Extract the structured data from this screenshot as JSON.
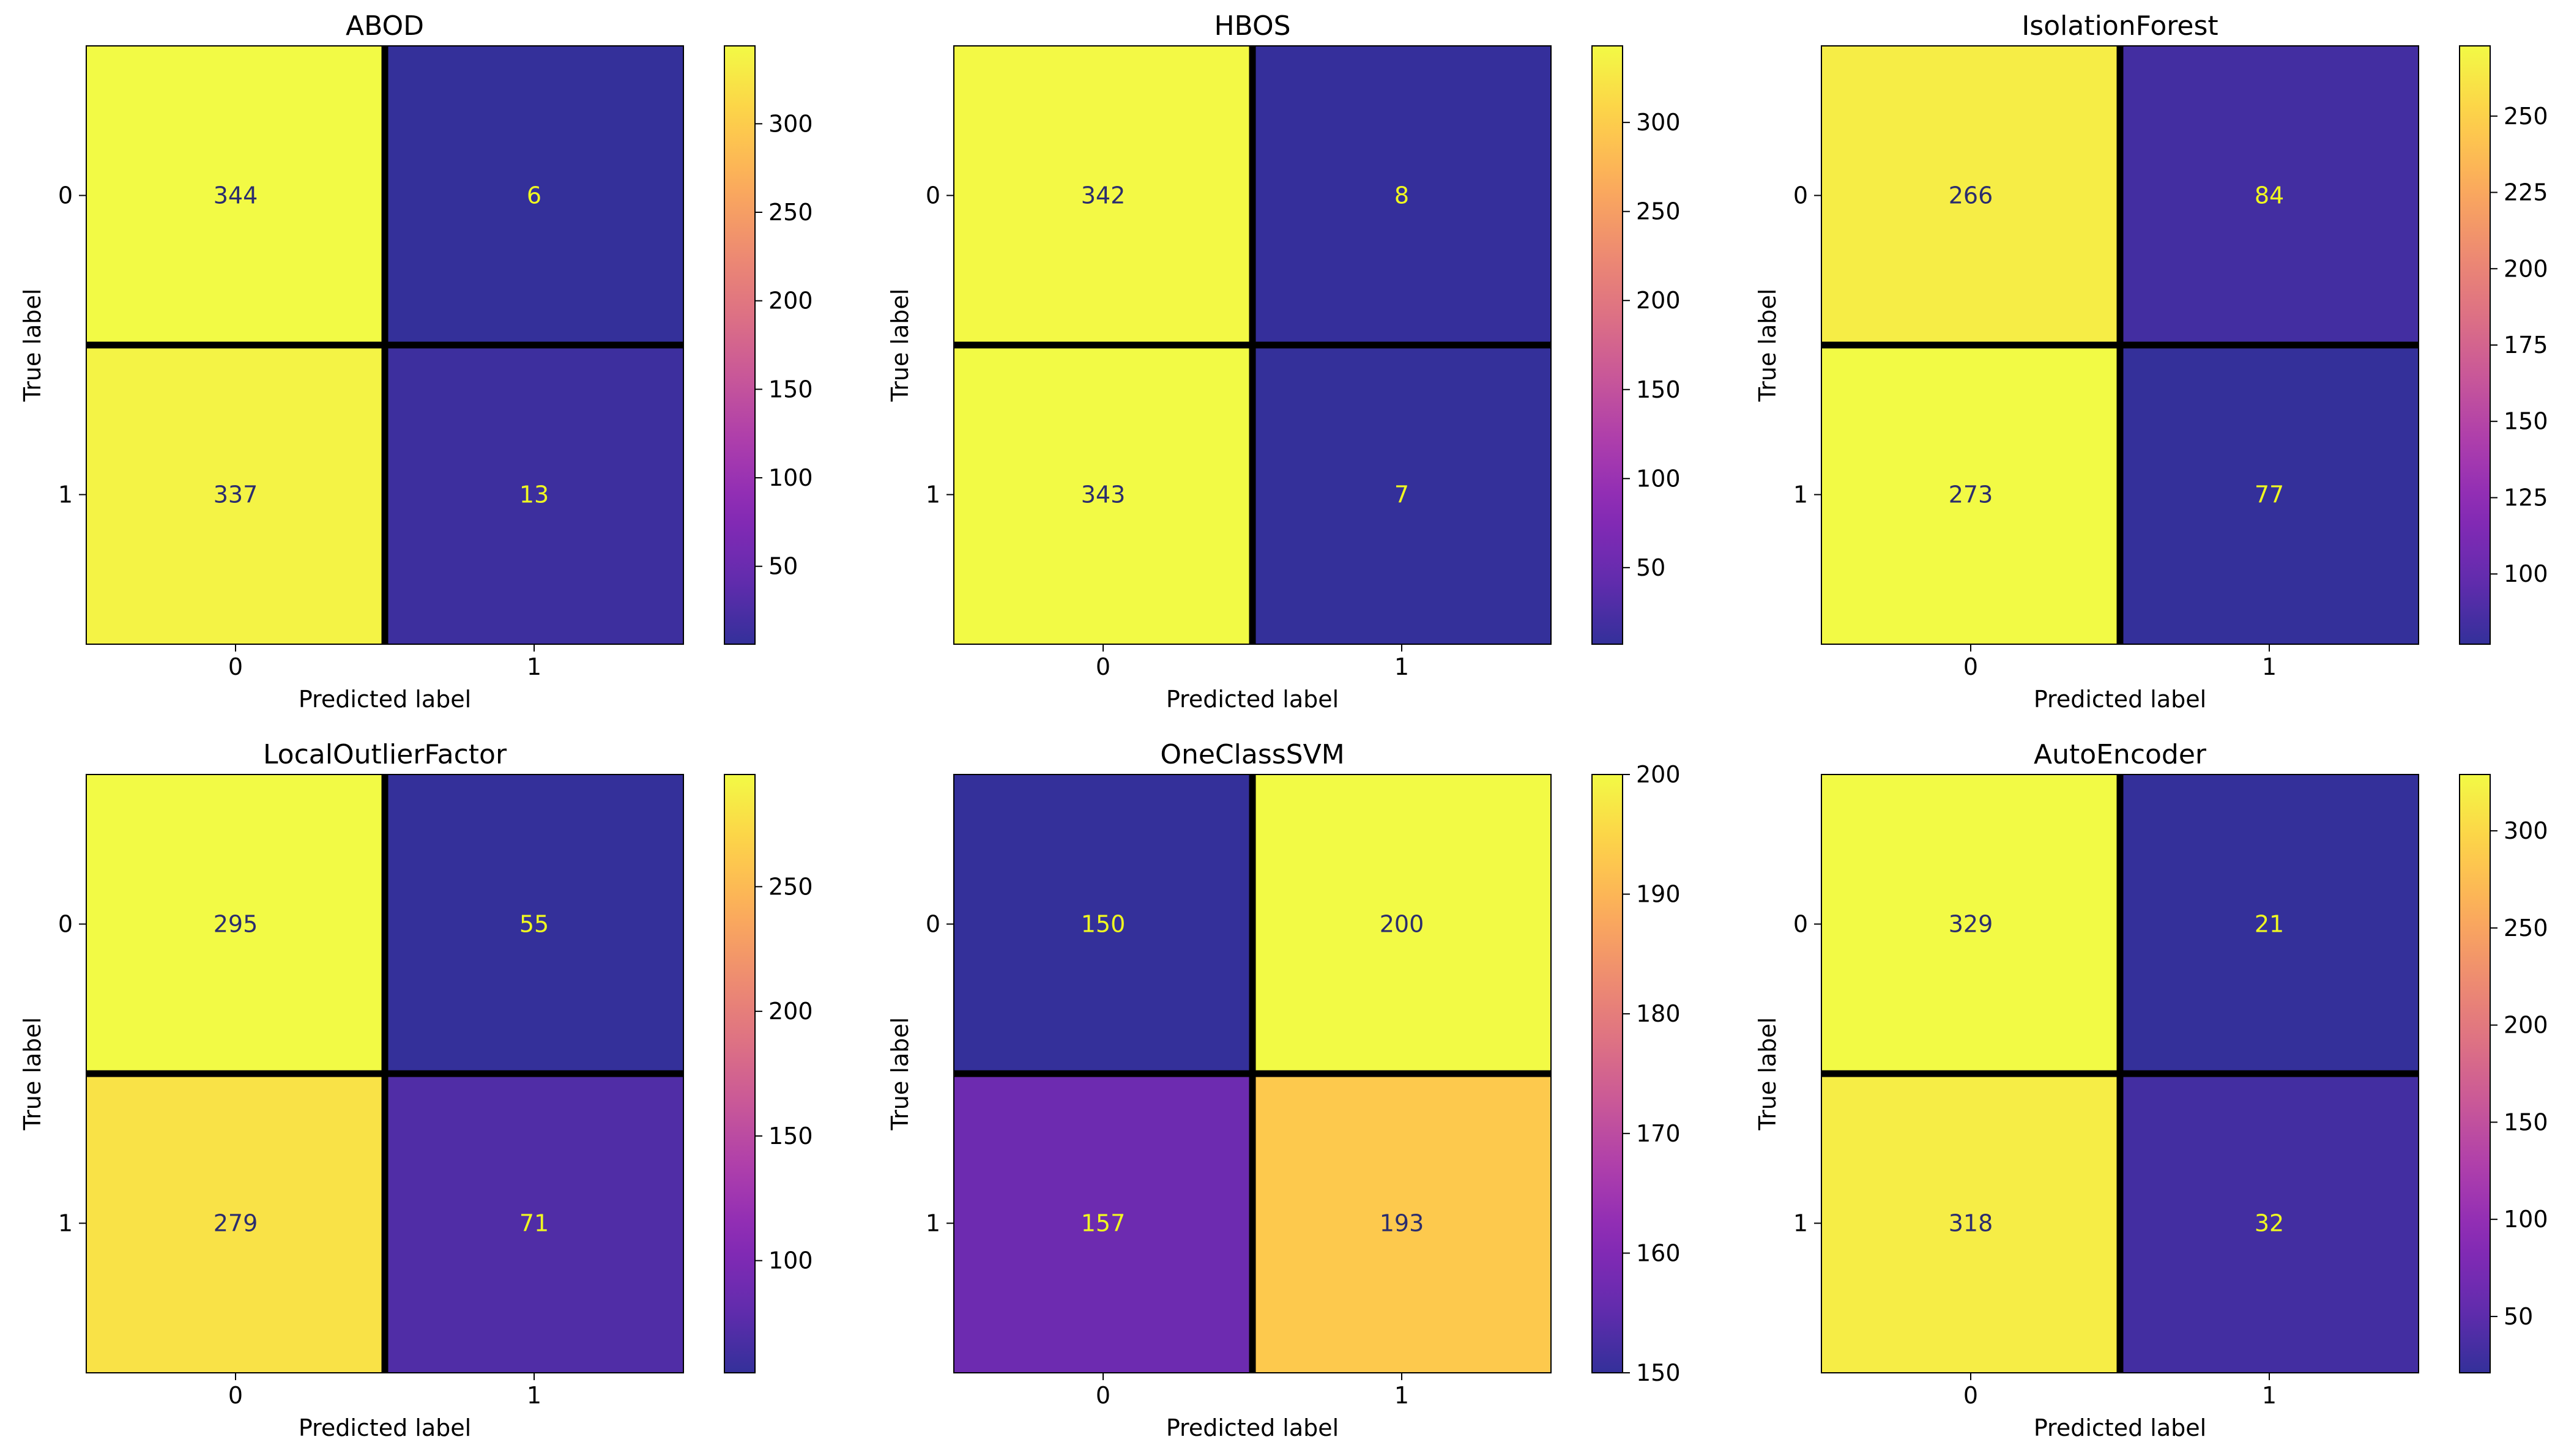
{
  "chart_data": [
    {
      "type": "heatmap",
      "title": "ABOD",
      "xlabel": "Predicted label",
      "ylabel": "True label",
      "x_categories": [
        "0",
        "1"
      ],
      "y_categories": [
        "0",
        "1"
      ],
      "matrix": [
        [
          344,
          6
        ],
        [
          337,
          13
        ]
      ],
      "colorbar": {
        "range": [
          6,
          344
        ],
        "ticks": [
          50,
          100,
          150,
          200,
          250,
          300
        ]
      }
    },
    {
      "type": "heatmap",
      "title": "HBOS",
      "xlabel": "Predicted label",
      "ylabel": "True label",
      "x_categories": [
        "0",
        "1"
      ],
      "y_categories": [
        "0",
        "1"
      ],
      "matrix": [
        [
          342,
          8
        ],
        [
          343,
          7
        ]
      ],
      "colorbar": {
        "range": [
          7,
          343
        ],
        "ticks": [
          50,
          100,
          150,
          200,
          250,
          300
        ]
      }
    },
    {
      "type": "heatmap",
      "title": "IsolationForest",
      "xlabel": "Predicted label",
      "ylabel": "True label",
      "x_categories": [
        "0",
        "1"
      ],
      "y_categories": [
        "0",
        "1"
      ],
      "matrix": [
        [
          266,
          84
        ],
        [
          273,
          77
        ]
      ],
      "colorbar": {
        "range": [
          77,
          273
        ],
        "ticks": [
          100,
          125,
          150,
          175,
          200,
          225,
          250
        ]
      }
    },
    {
      "type": "heatmap",
      "title": "LocalOutlierFactor",
      "xlabel": "Predicted label",
      "ylabel": "True label",
      "x_categories": [
        "0",
        "1"
      ],
      "y_categories": [
        "0",
        "1"
      ],
      "matrix": [
        [
          295,
          55
        ],
        [
          279,
          71
        ]
      ],
      "colorbar": {
        "range": [
          55,
          295
        ],
        "ticks": [
          100,
          150,
          200,
          250
        ]
      }
    },
    {
      "type": "heatmap",
      "title": "OneClassSVM",
      "xlabel": "Predicted label",
      "ylabel": "True label",
      "x_categories": [
        "0",
        "1"
      ],
      "y_categories": [
        "0",
        "1"
      ],
      "matrix": [
        [
          150,
          200
        ],
        [
          157,
          193
        ]
      ],
      "colorbar": {
        "range": [
          150,
          200
        ],
        "ticks": [
          150,
          160,
          170,
          180,
          190,
          200
        ]
      }
    },
    {
      "type": "heatmap",
      "title": "AutoEncoder",
      "xlabel": "Predicted label",
      "ylabel": "True label",
      "x_categories": [
        "0",
        "1"
      ],
      "y_categories": [
        "0",
        "1"
      ],
      "matrix": [
        [
          329,
          21
        ],
        [
          318,
          32
        ]
      ],
      "colorbar": {
        "range": [
          21,
          329
        ],
        "ticks": [
          50,
          100,
          150,
          200,
          250,
          300
        ]
      }
    }
  ],
  "colormap": [
    "#0d0887",
    "#46039f",
    "#7201a8",
    "#9c179e",
    "#bd3786",
    "#d8576b",
    "#ed7953",
    "#fb9f3a",
    "#fdca26",
    "#f0f921"
  ],
  "text_colors": {
    "on_dark": "#f0f921",
    "on_light": "#2b2d6e"
  }
}
